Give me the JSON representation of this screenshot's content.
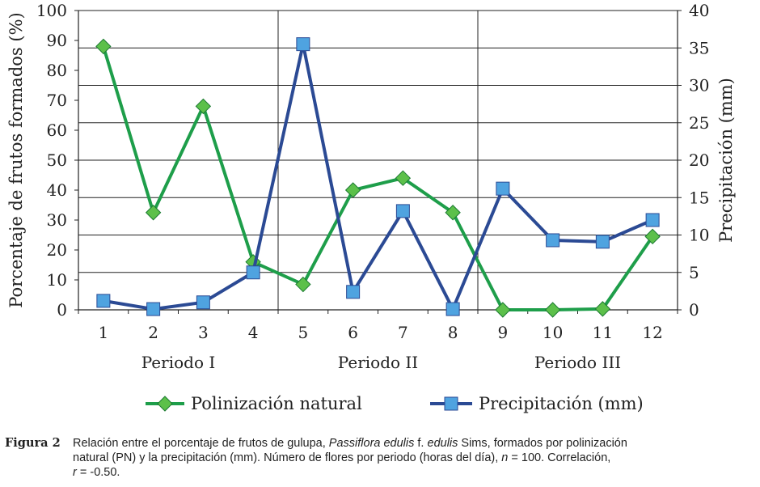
{
  "chart_data": {
    "type": "line",
    "categories": [
      "1",
      "2",
      "3",
      "4",
      "5",
      "6",
      "7",
      "8",
      "9",
      "10",
      "11",
      "12"
    ],
    "period_labels": [
      "Periodo I",
      "Periodo II",
      "Periodo III"
    ],
    "series": [
      {
        "name": "Polinización natural",
        "axis": "left",
        "color": "#1e9e4a",
        "marker": "diamond",
        "marker_color": "#5cc04a",
        "values": [
          88,
          32.5,
          68,
          16,
          8.5,
          40,
          44,
          32.5,
          0,
          0,
          0.3,
          24.5
        ]
      },
      {
        "name": "Precipitación (mm)",
        "axis": "right",
        "color": "#2b4a94",
        "marker": "square",
        "marker_color": "#4fa3e0",
        "values": [
          1.2,
          0.1,
          1.0,
          5.0,
          35.5,
          2.4,
          13.2,
          0.1,
          16.2,
          9.3,
          9.1,
          12.0
        ]
      }
    ],
    "ylabel_left": "Porcentaje de frutos formados (%)",
    "ylabel_right": "Precipitación (mm)",
    "ylim_left": [
      0,
      100
    ],
    "ylim_right": [
      0,
      40
    ],
    "yticks_left": [
      "0",
      "10",
      "20",
      "30",
      "40",
      "50",
      "60",
      "70",
      "80",
      "90",
      "100"
    ],
    "yticks_right": [
      "0",
      "5",
      "10",
      "15",
      "20",
      "25",
      "30",
      "35",
      "40"
    ],
    "grid": true,
    "legend_position": "bottom"
  },
  "caption": {
    "label": "Figura 2",
    "text_1": "Relación entre el porcentaje de frutos de gulupa, ",
    "species": "Passiflora edulis",
    "text_2": " f. ",
    "form": "edulis",
    "text_3": " Sims, formados por polinización",
    "line2": "natural (PN) y la precipitación (mm). Número de flores por periodo (horas del día), ",
    "n_symbol": "n",
    "line2_end": " = 100. Correlación,",
    "r_symbol": "r",
    "line3_end": " = -0.50."
  }
}
